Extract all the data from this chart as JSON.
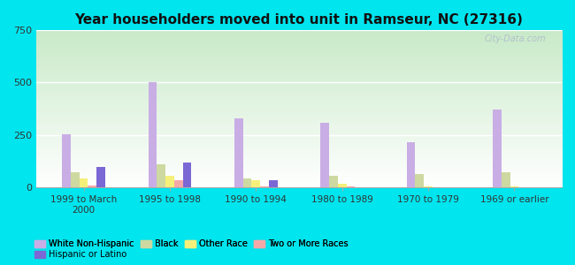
{
  "title": "Year householders moved into unit in Ramseur, NC (27316)",
  "categories": [
    "1999 to March\n2000",
    "1995 to 1998",
    "1990 to 1994",
    "1980 to 1989",
    "1970 to 1979",
    "1969 or earlier"
  ],
  "series_order": [
    "White Non-Hispanic",
    "Black",
    "Other Race",
    "Two or More Races",
    "Hispanic or Latino"
  ],
  "series": {
    "White Non-Hispanic": [
      255,
      503,
      330,
      310,
      215,
      370
    ],
    "Black": [
      75,
      110,
      45,
      55,
      65,
      75
    ],
    "Other Race": [
      45,
      55,
      35,
      20,
      5,
      5
    ],
    "Two or More Races": [
      10,
      35,
      5,
      5,
      0,
      0
    ],
    "Hispanic or Latino": [
      100,
      120,
      35,
      0,
      0,
      0
    ]
  },
  "colors": {
    "White Non-Hispanic": "#c9aee5",
    "Black": "#cdd9a0",
    "Other Race": "#f5f07a",
    "Two or More Races": "#f5a8a8",
    "Hispanic or Latino": "#7b68d4"
  },
  "ylim": [
    0,
    750
  ],
  "yticks": [
    0,
    250,
    500,
    750
  ],
  "background_color": "#00e5ee",
  "watermark": "City-Data.com",
  "legend_row1": [
    "White Non-Hispanic",
    "Black",
    "Other Race",
    "Two or More Races"
  ],
  "legend_row2": [
    "Hispanic or Latino"
  ]
}
